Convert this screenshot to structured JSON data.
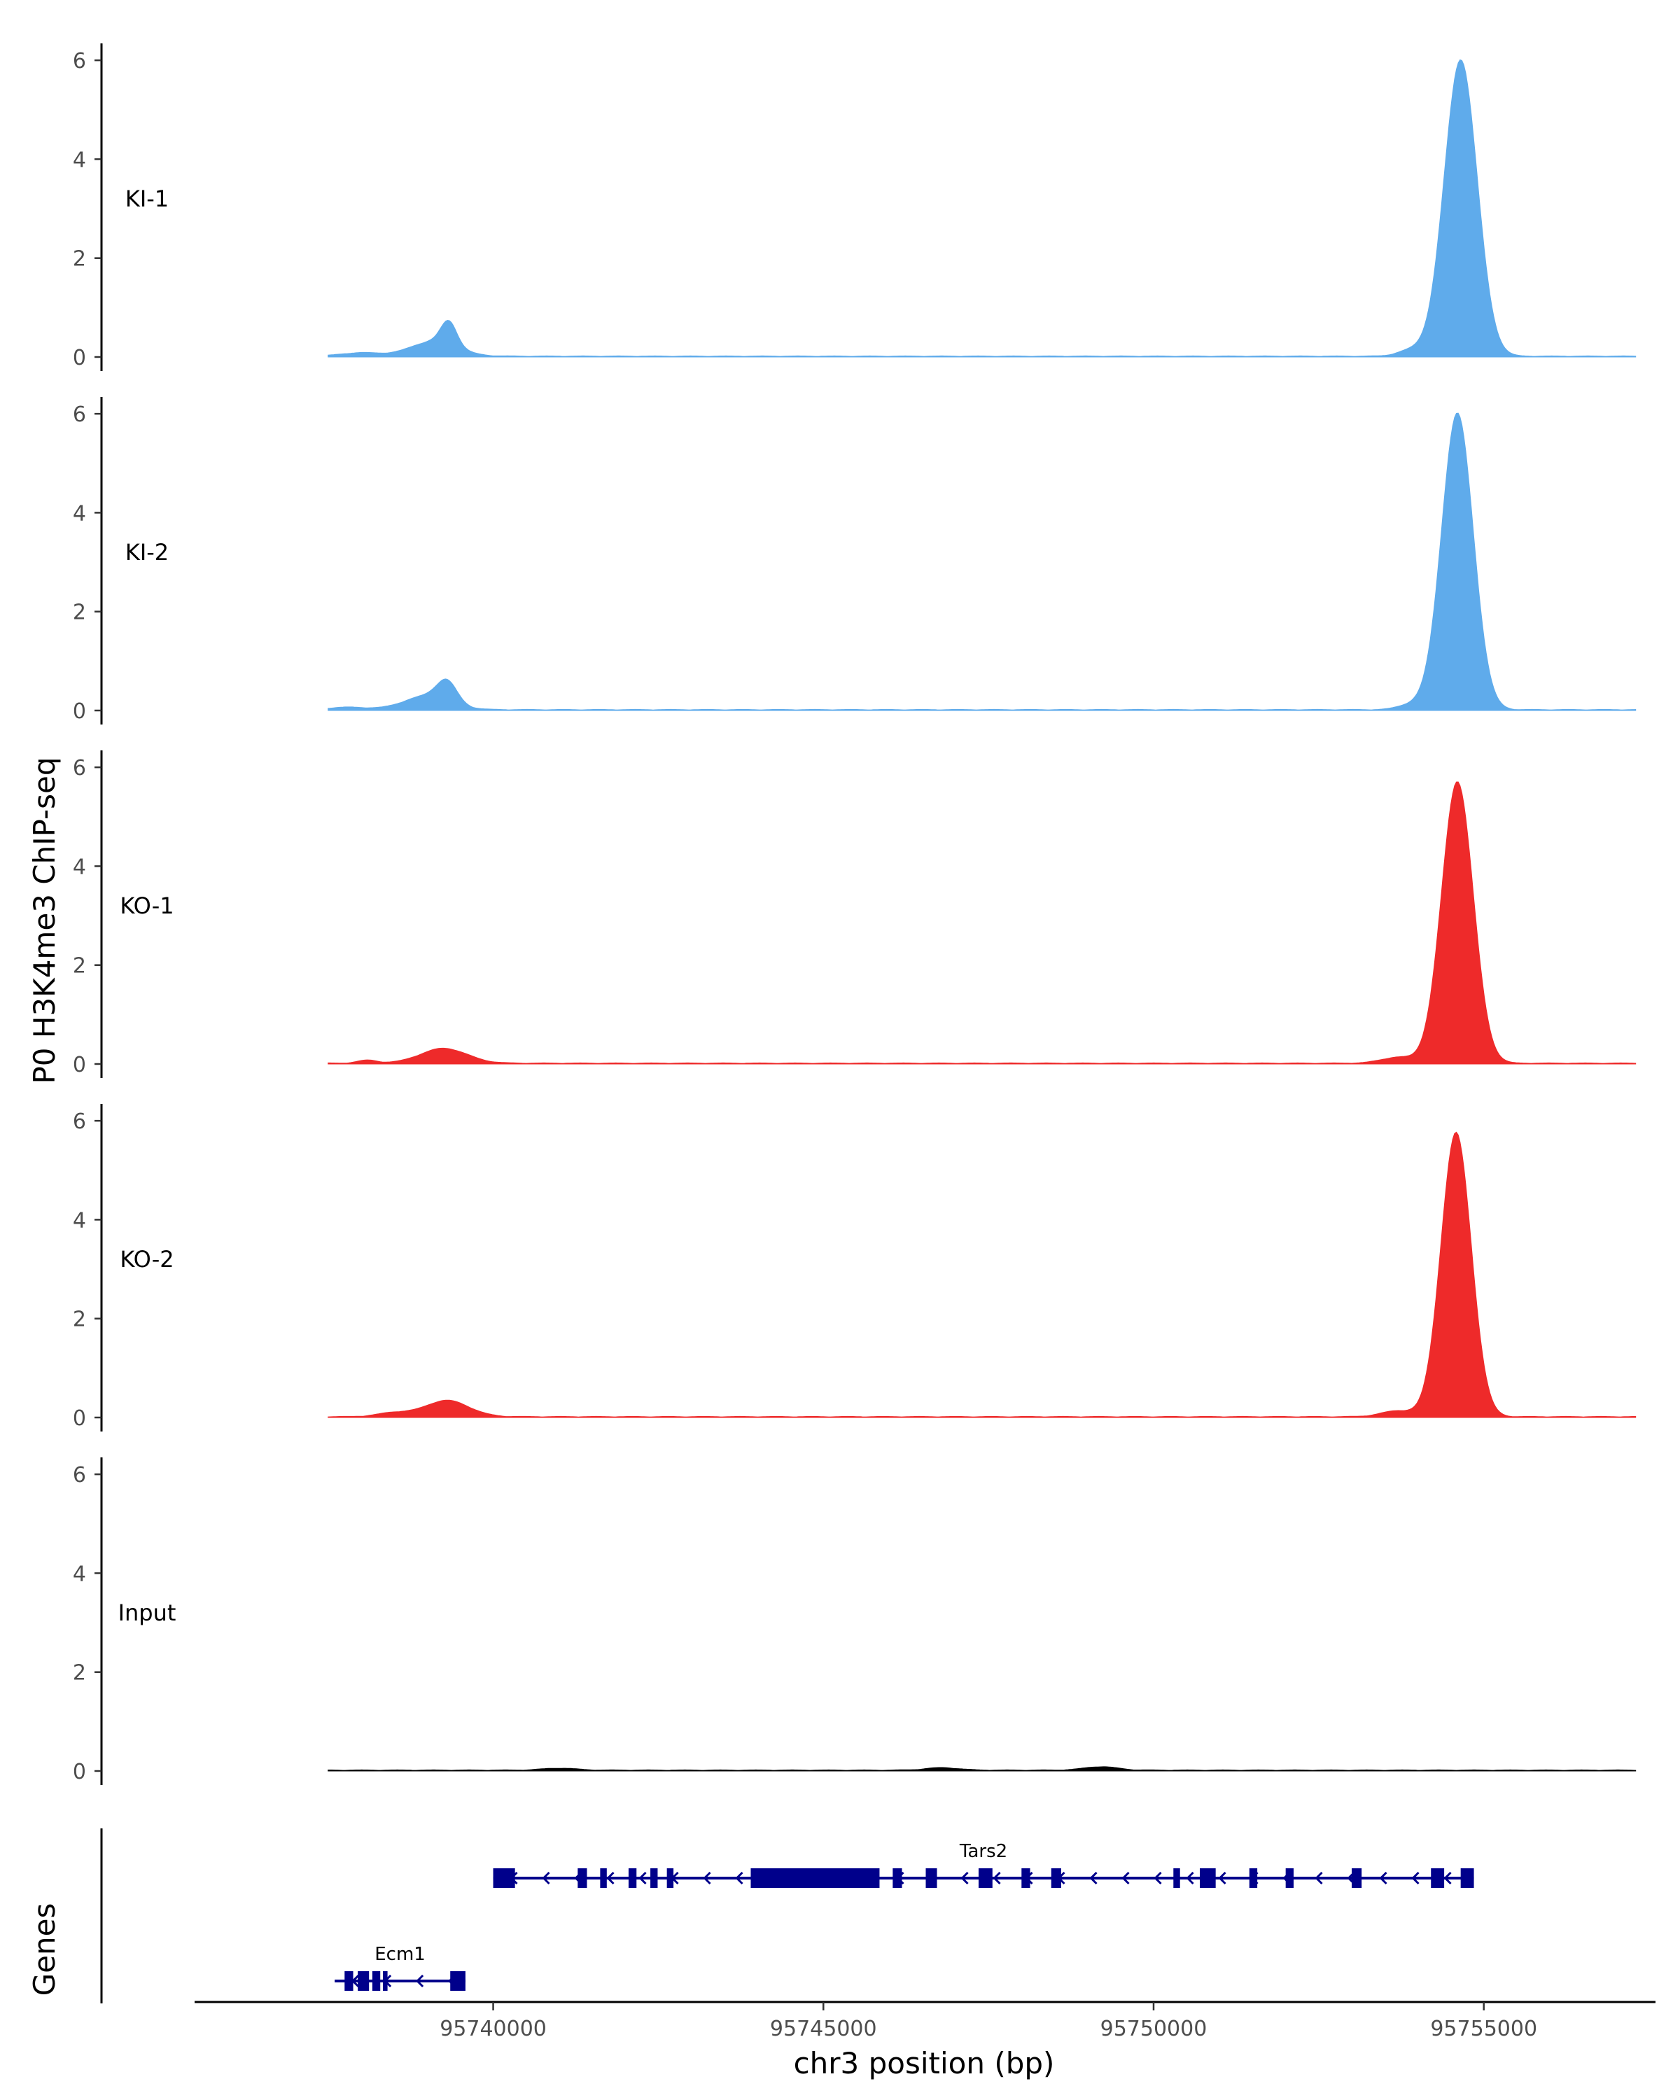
{
  "chart_data": {
    "type": "area",
    "ylabel": "P0 H3K4me3 ChIP-seq",
    "xlabel": "chr3 position (bp)",
    "xlim": [
      95735500,
      95757600
    ],
    "x_ticks": [
      95740000,
      95745000,
      95750000,
      95755000
    ],
    "x_tick_labels": [
      "95740000",
      "95745000",
      "95750000",
      "95755000"
    ],
    "ylim": [
      0,
      6.2
    ],
    "y_ticks": [
      0,
      2,
      4,
      6
    ],
    "y_tick_labels": [
      "0",
      "2",
      "4",
      "6"
    ],
    "data_range": [
      95737500,
      95757300
    ],
    "colors": {
      "KI": "#5fabeb",
      "KO": "#ee2a2a",
      "Input": "#000000",
      "gene": "#00008b"
    },
    "tracks": [
      {
        "name": "KI-1",
        "color": "#5fabeb",
        "peaks": [
          {
            "center": 95739330,
            "height": 0.48,
            "sd": 120
          },
          {
            "center": 95739100,
            "height": 0.3,
            "sd": 350
          },
          {
            "center": 95738000,
            "height": 0.07,
            "sd": 300
          },
          {
            "center": 95754650,
            "height": 6.0,
            "sd": 250
          },
          {
            "center": 95753900,
            "height": 0.12,
            "sd": 200
          }
        ]
      },
      {
        "name": "KI-2",
        "color": "#5fabeb",
        "peaks": [
          {
            "center": 95739300,
            "height": 0.42,
            "sd": 150
          },
          {
            "center": 95739000,
            "height": 0.28,
            "sd": 350
          },
          {
            "center": 95737800,
            "height": 0.05,
            "sd": 300
          },
          {
            "center": 95754600,
            "height": 6.0,
            "sd": 240
          },
          {
            "center": 95753900,
            "height": 0.1,
            "sd": 200
          }
        ]
      },
      {
        "name": "KO-1",
        "color": "#ee2a2a",
        "peaks": [
          {
            "center": 95739250,
            "height": 0.3,
            "sd": 350
          },
          {
            "center": 95738100,
            "height": 0.06,
            "sd": 150
          },
          {
            "center": 95754600,
            "height": 5.7,
            "sd": 240
          },
          {
            "center": 95753700,
            "height": 0.12,
            "sd": 250
          }
        ]
      },
      {
        "name": "KO-2",
        "color": "#ee2a2a",
        "peaks": [
          {
            "center": 95739300,
            "height": 0.33,
            "sd": 330
          },
          {
            "center": 95738500,
            "height": 0.08,
            "sd": 250
          },
          {
            "center": 95754580,
            "height": 5.75,
            "sd": 230
          },
          {
            "center": 95753700,
            "height": 0.12,
            "sd": 250
          }
        ]
      },
      {
        "name": "Input",
        "color": "#000000",
        "peaks": [
          {
            "center": 95749200,
            "height": 0.07,
            "sd": 250
          },
          {
            "center": 95741000,
            "height": 0.04,
            "sd": 250
          },
          {
            "center": 95746800,
            "height": 0.05,
            "sd": 250
          }
        ]
      }
    ],
    "genes_title": "Genes",
    "genes": [
      {
        "name": "Tars2",
        "start": 95740000,
        "end": 95754850,
        "strand": "-",
        "row": 0,
        "exons": [
          [
            95740000,
            95740330
          ],
          [
            95741280,
            95741420
          ],
          [
            95741620,
            95741720
          ],
          [
            95742050,
            95742170
          ],
          [
            95742380,
            95742490
          ],
          [
            95742630,
            95742730
          ],
          [
            95743900,
            95745850
          ],
          [
            95746050,
            95746190
          ],
          [
            95746550,
            95746720
          ],
          [
            95747350,
            95747560
          ],
          [
            95748000,
            95748130
          ],
          [
            95748450,
            95748600
          ],
          [
            95750300,
            95750400
          ],
          [
            95750700,
            95750940
          ],
          [
            95751450,
            95751570
          ],
          [
            95752000,
            95752120
          ],
          [
            95753000,
            95753150
          ],
          [
            95754200,
            95754400
          ],
          [
            95754650,
            95754850
          ]
        ]
      },
      {
        "name": "Ecm1",
        "start": 95737600,
        "end": 95739580,
        "strand": "-",
        "row": 1,
        "exons": [
          [
            95737750,
            95737880
          ],
          [
            95737950,
            95738120
          ],
          [
            95738170,
            95738290
          ],
          [
            95738330,
            95738400
          ],
          [
            95739350,
            95739580
          ]
        ]
      }
    ]
  }
}
